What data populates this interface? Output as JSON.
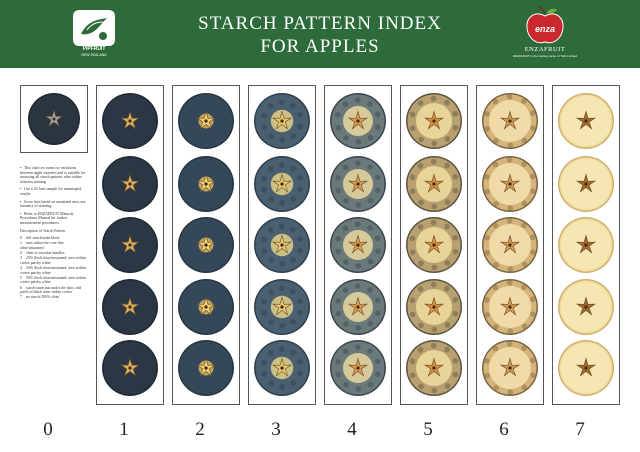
{
  "header": {
    "title_line1": "STARCH PATTERN INDEX",
    "title_line2": "FOR APPLES",
    "left_logo": {
      "name": "PIPFRUIT",
      "sub": "NEW ZEALAND",
      "icon": "bird-icon"
    },
    "right_logo": {
      "badge": "enza",
      "name": "ENZAFRUIT",
      "sub": "ENZAFRUIT is the trading name of T&G Limited",
      "icon": "apple-icon"
    }
  },
  "colors": {
    "header_green": "#2d6b3a",
    "apple_red": "#c8282e"
  },
  "notes": [
    "This chart accounts for variations between apple varieties and is suitable for assessing all starch patterns after iodine solution staining.",
    "Use a 20 fruit sample for meaningful results.",
    "Score fruit based on unstained area, not intensity of staining.",
    "Refer to ENZAFRUIT Maturity Procedures Manual for further measurement procedures."
  ],
  "key_title": "Description of Starch Pattern",
  "key": [
    {
      "n": "0",
      "text": "full starch/stain black"
    },
    {
      "n": "1",
      "text": "area within the core line clear/unstained"
    },
    {
      "n": "2",
      "text": "clear to vascular bundles"
    },
    {
      "n": "3",
      "text": "25% flesh clear/unstained; area within cortex patchy white"
    },
    {
      "n": "4",
      "text": "33% flesh clear/unstained; area within cortex patchy white"
    },
    {
      "n": "5",
      "text": "50% flesh clear/unstained; area within cortex patchy white"
    },
    {
      "n": "6",
      "text": "starch/stain just under the skin; odd patch of black stain within cortex"
    },
    {
      "n": "7",
      "text": "no starch/100% clear"
    }
  ],
  "columns": [
    {
      "label": "0",
      "stage": 0,
      "apples": [
        0
      ]
    },
    {
      "label": "1",
      "stage": 1,
      "apples": [
        1,
        1,
        1,
        1,
        1
      ]
    },
    {
      "label": "2",
      "stage": 2,
      "apples": [
        2,
        2,
        2,
        2,
        2
      ]
    },
    {
      "label": "3",
      "stage": 3,
      "apples": [
        3,
        3,
        3,
        3,
        3
      ]
    },
    {
      "label": "4",
      "stage": 4,
      "apples": [
        4,
        4,
        4,
        4,
        4
      ]
    },
    {
      "label": "5",
      "stage": 5,
      "apples": [
        5,
        5,
        5,
        5,
        5
      ]
    },
    {
      "label": "6",
      "stage": 6,
      "apples": [
        6,
        6,
        6,
        6,
        6
      ]
    },
    {
      "label": "7",
      "stage": 7,
      "apples": [
        7,
        7,
        7,
        7,
        7
      ]
    }
  ]
}
